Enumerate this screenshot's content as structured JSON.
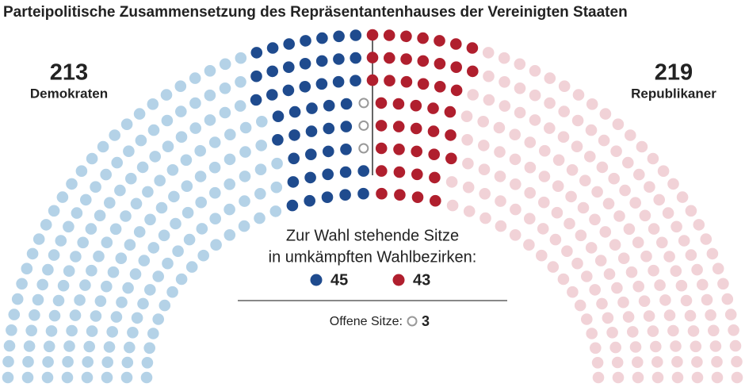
{
  "chart_data": {
    "type": "parliament",
    "title": "Parteipolitische Zusammensetzung des Repräsentantenhauses der Vereinigten Staaten",
    "series": [
      {
        "name": "Demokraten",
        "total": 213,
        "contested": 45,
        "color": "#1f4b8e",
        "light_color": "#b4d2e7"
      },
      {
        "name": "Republikaner",
        "total": 219,
        "contested": 43,
        "color": "#b01f2e",
        "light_color": "#f1d2d7"
      }
    ],
    "legend_title": [
      "Zur Wahl stehende Sitze",
      "in umkämpften Wahlbezirken:"
    ],
    "vacant": {
      "label": "Offene Sitze:",
      "value": 3,
      "color": "#999999"
    }
  }
}
